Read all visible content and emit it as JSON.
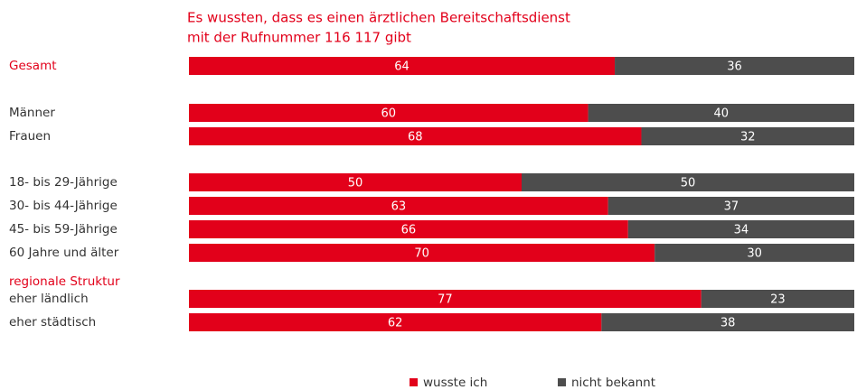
{
  "chart_data": {
    "type": "stacked-bar-horizontal",
    "title": [
      "Es wussten, dass es einen ärztlichen Bereitschaftsdienst",
      "mit der Rufnummer 116 117 gibt"
    ],
    "section_label": "regionale Struktur",
    "categories": [
      "Gesamt",
      "Männer",
      "Frauen",
      "18- bis 29-Jährige",
      "30- bis 44-Jährige",
      "45- bis 59-Jährige",
      "60 Jahre und älter",
      "eher ländlich",
      "eher städtisch"
    ],
    "series": [
      {
        "name": "wusste ich",
        "color": "#e2001a",
        "values": [
          64,
          60,
          68,
          50,
          63,
          66,
          70,
          77,
          62
        ]
      },
      {
        "name": "nicht bekannt",
        "color": "#4d4d4d",
        "values": [
          36,
          40,
          32,
          50,
          37,
          34,
          30,
          23,
          38
        ]
      }
    ],
    "xlim": [
      0,
      100
    ]
  }
}
